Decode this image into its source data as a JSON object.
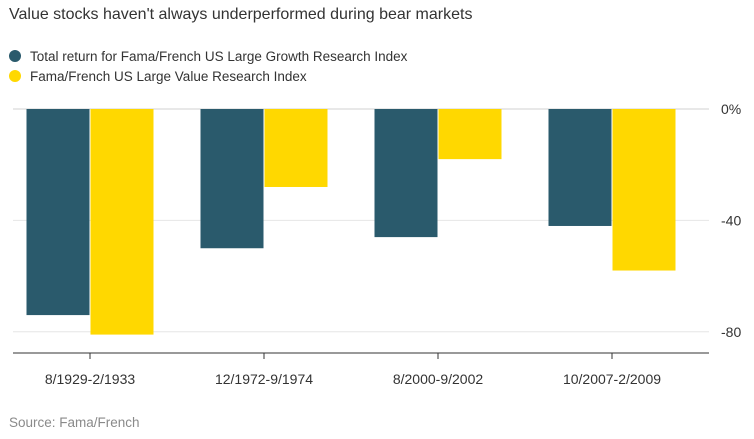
{
  "chart_data": {
    "type": "bar",
    "title": "Value stocks haven't always underperformed during bear markets",
    "categories": [
      "8/1929-2/1933",
      "12/1972-9/1974",
      "8/2000-9/2002",
      "10/2007-2/2009"
    ],
    "series": [
      {
        "name": "Total return for Fama/French US Large Growth Research Index",
        "color": "#2a5a6c",
        "values": [
          -74,
          -50,
          -46,
          -42
        ]
      },
      {
        "name": "Fama/French US Large Value Research Index",
        "color": "#ffd800",
        "values": [
          -81,
          -28,
          -18,
          -58
        ]
      }
    ],
    "yticks": [
      0,
      -40,
      -80
    ],
    "ytick_labels": [
      "0%",
      "-40",
      "-80"
    ],
    "ylim": [
      -88,
      0
    ],
    "xlabel": "",
    "ylabel": "",
    "grid": true,
    "y_axis_position": "right",
    "legend_position": "top-left"
  },
  "source": "Source: Fama/French"
}
